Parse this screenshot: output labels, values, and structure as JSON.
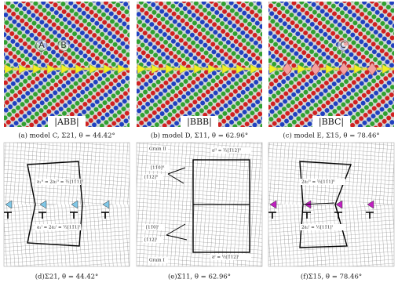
{
  "top_panels": [
    {
      "caption": "(a) model C, Σ21, θ = 44.42°",
      "sequence": "|ABB|",
      "labels": [
        "A",
        "B"
      ]
    },
    {
      "caption": "(b) model D, Σ11, θ = 62.96°",
      "sequence": "|BBB|",
      "labels": []
    },
    {
      "caption": "(c) model E, Σ15, θ = 78.46°",
      "sequence": "|BBC|",
      "labels": [
        "C"
      ]
    }
  ],
  "bottom_panels": [
    {
      "caption": "(d)Σ21, θ = 44.42°",
      "labels": [
        "a₁ᴵᴵ = 2a₂ᴵᴵ = ½[11̄1]ᴵᴵ",
        "a₁ᴵ = 2a₂ᴵ = ½[11̄1]ᴵ"
      ]
    },
    {
      "caption": "(e)Σ11, θ = 62.96°",
      "labels": [
        "Grain II",
        "Grain I",
        "[11̄0]ᴵᴵ",
        "[1̄12]ᴵᴵ",
        "[11̄0]ᴵ",
        "[1̄12]ᴵ",
        "aᴵᴵ = ½[1̄12]ᴵᴵ",
        "aᴵ = ½[1̄12]ᴵ"
      ]
    },
    {
      "caption": "(f)Σ15, θ = 78.46°",
      "labels": [
        "2a₂ᴵᴵ = ½[11̄1]ᴵᴵ",
        "2a₂ᴵ = ½[11̄1]ᴵ"
      ]
    }
  ]
}
